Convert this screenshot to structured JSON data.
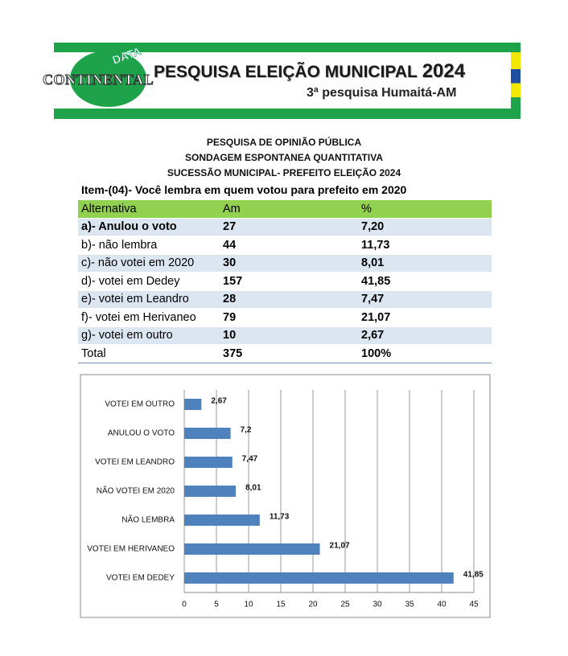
{
  "header": {
    "logo": "CONTINENTAL",
    "logo_tag": "DATA",
    "title": "PESQUISA ELEIÇÃO MUNICIPAL",
    "year": "2024",
    "subtitle": "3ª pesquisa Humaitá-AM"
  },
  "headings": [
    "PESQUISA DE OPINIÃO PÚBLICA",
    "SONDAGEM ESPONTANEA QUANTITATIVA",
    "SUCESSÃO MUNICIPAL-  PREFEITO ELEIÇÃO 2024"
  ],
  "item": "Item-(04)-  Você lembra em quem votou para prefeito em 2020",
  "table": {
    "header": [
      "Alternativa",
      "Am",
      "%"
    ],
    "rows": [
      [
        "a)- Anulou o voto",
        "27",
        "7,20"
      ],
      [
        "b)- não lembra",
        "44",
        "11,73"
      ],
      [
        "c)- não votei em 2020",
        "30",
        "8,01"
      ],
      [
        "d)- votei em Dedey",
        "157",
        "41,85"
      ],
      [
        "e)- votei em Leandro",
        "28",
        "7,47"
      ],
      [
        "f)- votei em Herivaneo",
        "79",
        "21,07"
      ],
      [
        "g)- votei em outro",
        "10",
        "2,67"
      ],
      [
        "Total",
        "375",
        "100%"
      ]
    ]
  },
  "chart_data": {
    "type": "bar",
    "orientation": "horizontal",
    "categories": [
      "VOTEI EM OUTRO",
      "ANULOU O VOTO",
      "VOTEI EM LEANDRO",
      "NÃO VOTEI EM 2020",
      "NÃO LEMBRA",
      "VOTEI EM HERIVANEO",
      "VOTEI EM DEDEY"
    ],
    "values": [
      2.67,
      7.2,
      7.47,
      8.01,
      11.73,
      21.07,
      41.85
    ],
    "value_labels": [
      "2,67",
      "7,2",
      "7,47",
      "8,01",
      "11,73",
      "21,07",
      "41,85"
    ],
    "color": "#4f81bd",
    "xlim": [
      0,
      45
    ],
    "xticks": [
      0,
      5,
      10,
      15,
      20,
      25,
      30,
      35,
      40,
      45
    ],
    "grid": true
  }
}
